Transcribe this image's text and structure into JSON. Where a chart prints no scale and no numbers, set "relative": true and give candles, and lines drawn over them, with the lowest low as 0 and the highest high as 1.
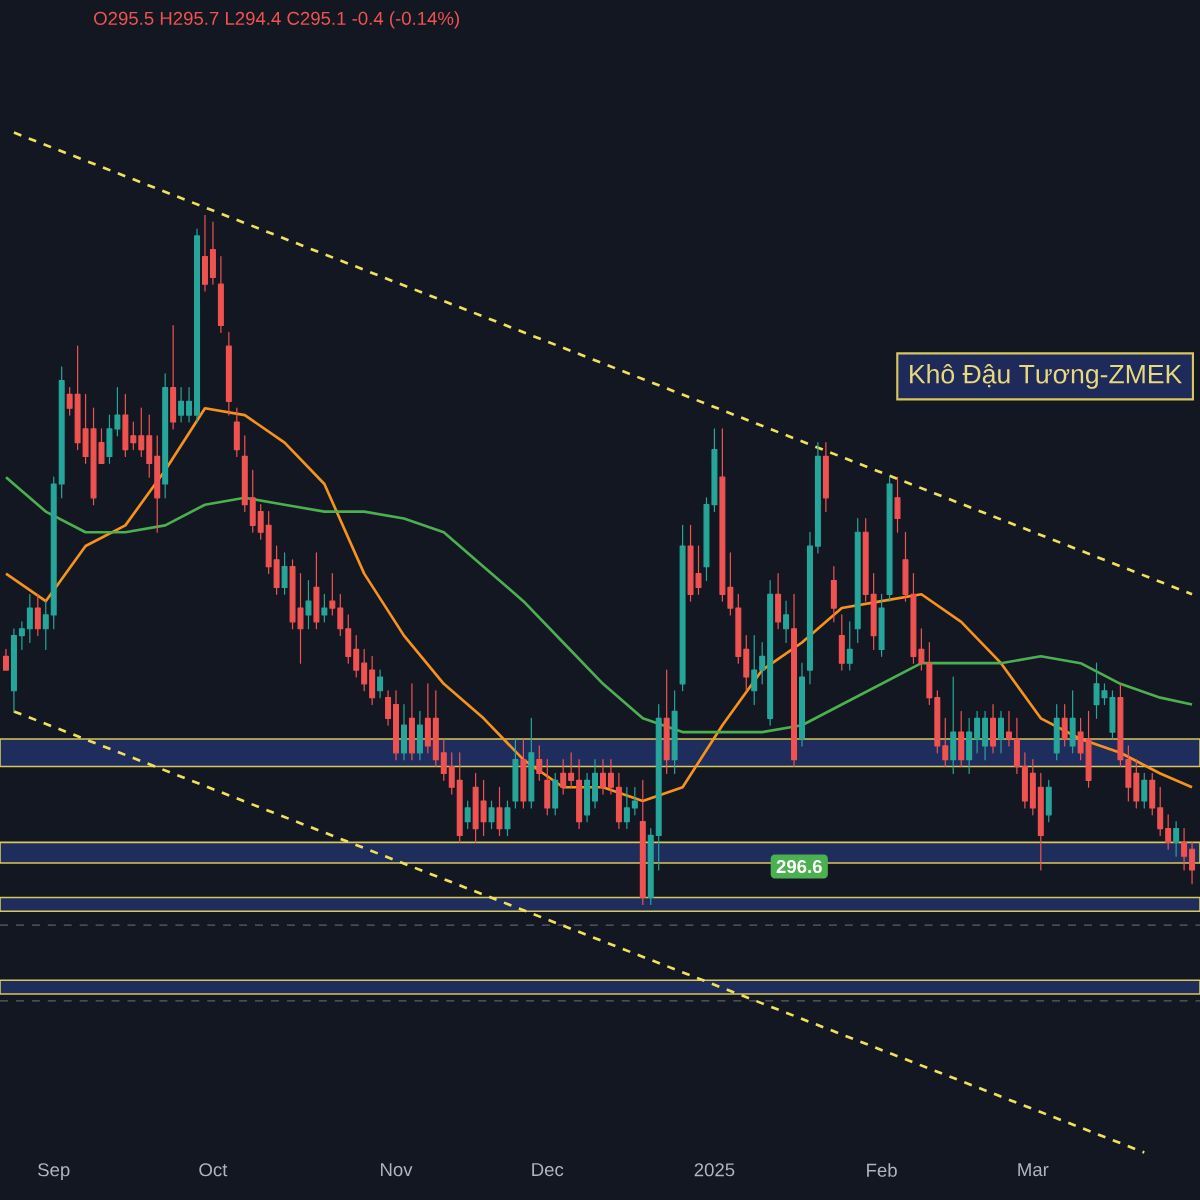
{
  "chart_data": {
    "type": "candlestick",
    "relative": true,
    "title": "Khô Đậu Tương-ZMEK",
    "subtitle": "O295.5 H295.7 L294.4 C295.1 -0.4 (-0.14%)",
    "annotations": [
      "296.6"
    ],
    "categories": [
      null,
      null,
      null,
      null,
      null,
      null,
      "Sep",
      null,
      null,
      null,
      null,
      null,
      null,
      null,
      null,
      null,
      null,
      null,
      null,
      null,
      null,
      null,
      null,
      null,
      null,
      null,
      "Oct",
      null,
      null,
      null,
      null,
      null,
      null,
      null,
      null,
      null,
      null,
      null,
      null,
      null,
      null,
      null,
      null,
      null,
      null,
      null,
      null,
      null,
      null,
      "Nov",
      null,
      null,
      null,
      null,
      null,
      null,
      null,
      null,
      null,
      null,
      null,
      null,
      null,
      null,
      null,
      null,
      null,
      null,
      "Dec",
      null,
      null,
      null,
      null,
      null,
      null,
      null,
      null,
      null,
      null,
      null,
      null,
      null,
      null,
      null,
      null,
      null,
      null,
      null,
      null,
      "2025",
      null,
      null,
      null,
      null,
      null,
      null,
      null,
      null,
      null,
      null,
      null,
      null,
      null,
      null,
      null,
      null,
      null,
      null,
      null,
      null,
      "Feb",
      null,
      null,
      null,
      null,
      null,
      null,
      null,
      null,
      null,
      null,
      null,
      null,
      null,
      null,
      null,
      null,
      null,
      null,
      "Mar",
      null,
      null,
      null,
      null,
      null,
      null,
      null,
      null,
      null,
      null,
      null,
      null,
      null,
      null,
      null,
      null,
      null,
      null,
      null,
      null
    ],
    "ohlc": [
      [
        0.36,
        0.37,
        0.34,
        0.34
      ],
      [
        0.31,
        0.4,
        0.28,
        0.39
      ],
      [
        0.39,
        0.41,
        0.37,
        0.4
      ],
      [
        0.4,
        0.45,
        0.38,
        0.43
      ],
      [
        0.43,
        0.45,
        0.39,
        0.4
      ],
      [
        0.4,
        0.44,
        0.37,
        0.42
      ],
      [
        0.42,
        0.62,
        0.4,
        0.61
      ],
      [
        0.61,
        0.78,
        0.59,
        0.76
      ],
      [
        0.74,
        0.75,
        0.71,
        0.72
      ],
      [
        0.74,
        0.81,
        0.66,
        0.67
      ],
      [
        0.69,
        0.74,
        0.64,
        0.65
      ],
      [
        0.69,
        0.72,
        0.58,
        0.59
      ],
      [
        0.67,
        0.69,
        0.64,
        0.64
      ],
      [
        0.65,
        0.71,
        0.64,
        0.69
      ],
      [
        0.69,
        0.75,
        0.68,
        0.71
      ],
      [
        0.71,
        0.74,
        0.65,
        0.66
      ],
      [
        0.68,
        0.7,
        0.66,
        0.67
      ],
      [
        0.68,
        0.72,
        0.65,
        0.66
      ],
      [
        0.68,
        0.71,
        0.62,
        0.64
      ],
      [
        0.65,
        0.68,
        0.54,
        0.59
      ],
      [
        0.61,
        0.77,
        0.59,
        0.75
      ],
      [
        0.75,
        0.84,
        0.69,
        0.7
      ],
      [
        0.71,
        0.75,
        0.7,
        0.73
      ],
      [
        0.71,
        0.75,
        0.7,
        0.73
      ],
      [
        0.71,
        0.98,
        0.7,
        0.97
      ],
      [
        0.94,
        1.0,
        0.89,
        0.9
      ],
      [
        0.95,
        0.99,
        0.9,
        0.91
      ],
      [
        0.9,
        0.94,
        0.83,
        0.84
      ],
      [
        0.81,
        0.83,
        0.71,
        0.73
      ],
      [
        0.7,
        0.72,
        0.65,
        0.66
      ],
      [
        0.65,
        0.68,
        0.57,
        0.58
      ],
      [
        0.59,
        0.63,
        0.54,
        0.55
      ],
      [
        0.57,
        0.58,
        0.53,
        0.54
      ],
      [
        0.55,
        0.57,
        0.48,
        0.49
      ],
      [
        0.5,
        0.52,
        0.45,
        0.46
      ],
      [
        0.46,
        0.51,
        0.45,
        0.49
      ],
      [
        0.49,
        0.5,
        0.4,
        0.41
      ],
      [
        0.43,
        0.48,
        0.35,
        0.4
      ],
      [
        0.42,
        0.47,
        0.4,
        0.44
      ],
      [
        0.46,
        0.51,
        0.4,
        0.41
      ],
      [
        0.42,
        0.45,
        0.41,
        0.43
      ],
      [
        0.44,
        0.48,
        0.42,
        0.43
      ],
      [
        0.43,
        0.45,
        0.39,
        0.4
      ],
      [
        0.4,
        0.42,
        0.35,
        0.36
      ],
      [
        0.37,
        0.39,
        0.33,
        0.34
      ],
      [
        0.35,
        0.37,
        0.31,
        0.32
      ],
      [
        0.34,
        0.36,
        0.29,
        0.3
      ],
      [
        0.31,
        0.34,
        0.3,
        0.33
      ],
      [
        0.3,
        0.31,
        0.26,
        0.27
      ],
      [
        0.29,
        0.31,
        0.21,
        0.22
      ],
      [
        0.22,
        0.29,
        0.21,
        0.26
      ],
      [
        0.27,
        0.32,
        0.21,
        0.22
      ],
      [
        0.22,
        0.28,
        0.21,
        0.26
      ],
      [
        0.27,
        0.32,
        0.22,
        0.23
      ],
      [
        0.27,
        0.31,
        0.2,
        0.21
      ],
      [
        0.22,
        0.24,
        0.18,
        0.19
      ],
      [
        0.2,
        0.22,
        0.16,
        0.17
      ],
      [
        0.18,
        0.22,
        0.09,
        0.1
      ],
      [
        0.12,
        0.15,
        0.11,
        0.14
      ],
      [
        0.17,
        0.19,
        0.09,
        0.11
      ],
      [
        0.15,
        0.18,
        0.1,
        0.12
      ],
      [
        0.12,
        0.15,
        0.11,
        0.14
      ],
      [
        0.14,
        0.17,
        0.1,
        0.11
      ],
      [
        0.11,
        0.15,
        0.1,
        0.14
      ],
      [
        0.15,
        0.24,
        0.14,
        0.21
      ],
      [
        0.21,
        0.24,
        0.14,
        0.15
      ],
      [
        0.15,
        0.27,
        0.14,
        0.22
      ],
      [
        0.21,
        0.23,
        0.18,
        0.19
      ],
      [
        0.18,
        0.21,
        0.13,
        0.14
      ],
      [
        0.14,
        0.19,
        0.13,
        0.18
      ],
      [
        0.19,
        0.21,
        0.16,
        0.17
      ],
      [
        0.19,
        0.22,
        0.17,
        0.18
      ],
      [
        0.18,
        0.21,
        0.11,
        0.12
      ],
      [
        0.13,
        0.19,
        0.12,
        0.18
      ],
      [
        0.15,
        0.21,
        0.14,
        0.19
      ],
      [
        0.19,
        0.21,
        0.16,
        0.17
      ],
      [
        0.19,
        0.21,
        0.16,
        0.17
      ],
      [
        0.17,
        0.19,
        0.11,
        0.12
      ],
      [
        0.12,
        0.17,
        0.11,
        0.14
      ],
      [
        0.14,
        0.17,
        0.13,
        0.15
      ],
      [
        0.12,
        0.18,
        0.0,
        0.01
      ],
      [
        0.01,
        0.11,
        0.0,
        0.1
      ],
      [
        0.1,
        0.29,
        0.05,
        0.27
      ],
      [
        0.27,
        0.34,
        0.19,
        0.21
      ],
      [
        0.21,
        0.31,
        0.19,
        0.28
      ],
      [
        0.32,
        0.55,
        0.31,
        0.52
      ],
      [
        0.52,
        0.55,
        0.44,
        0.45
      ],
      [
        0.48,
        0.52,
        0.45,
        0.46
      ],
      [
        0.49,
        0.59,
        0.47,
        0.58
      ],
      [
        0.58,
        0.69,
        0.57,
        0.66
      ],
      [
        0.62,
        0.69,
        0.44,
        0.45
      ],
      [
        0.46,
        0.51,
        0.42,
        0.43
      ],
      [
        0.43,
        0.45,
        0.35,
        0.36
      ],
      [
        0.37,
        0.39,
        0.31,
        0.33
      ],
      [
        0.31,
        0.39,
        0.29,
        0.34
      ],
      [
        0.34,
        0.38,
        0.32,
        0.36
      ],
      [
        0.27,
        0.47,
        0.26,
        0.45
      ],
      [
        0.45,
        0.48,
        0.4,
        0.41
      ],
      [
        0.4,
        0.44,
        0.38,
        0.42
      ],
      [
        0.4,
        0.45,
        0.2,
        0.21
      ],
      [
        0.24,
        0.35,
        0.23,
        0.33
      ],
      [
        0.34,
        0.54,
        0.32,
        0.52
      ],
      [
        0.52,
        0.67,
        0.51,
        0.65
      ],
      [
        0.65,
        0.67,
        0.57,
        0.59
      ],
      [
        0.47,
        0.49,
        0.41,
        0.43
      ],
      [
        0.39,
        0.42,
        0.34,
        0.35
      ],
      [
        0.35,
        0.41,
        0.34,
        0.37
      ],
      [
        0.4,
        0.56,
        0.38,
        0.54
      ],
      [
        0.54,
        0.56,
        0.44,
        0.45
      ],
      [
        0.45,
        0.48,
        0.37,
        0.39
      ],
      [
        0.37,
        0.45,
        0.36,
        0.43
      ],
      [
        0.45,
        0.62,
        0.44,
        0.61
      ],
      [
        0.59,
        0.62,
        0.54,
        0.56
      ],
      [
        0.5,
        0.54,
        0.44,
        0.45
      ],
      [
        0.45,
        0.48,
        0.35,
        0.36
      ],
      [
        0.37,
        0.4,
        0.34,
        0.35
      ],
      [
        0.35,
        0.38,
        0.29,
        0.3
      ],
      [
        0.3,
        0.31,
        0.22,
        0.23
      ],
      [
        0.23,
        0.27,
        0.2,
        0.21
      ],
      [
        0.21,
        0.33,
        0.19,
        0.25
      ],
      [
        0.25,
        0.28,
        0.2,
        0.21
      ],
      [
        0.21,
        0.27,
        0.19,
        0.25
      ],
      [
        0.24,
        0.28,
        0.22,
        0.27
      ],
      [
        0.23,
        0.28,
        0.21,
        0.27
      ],
      [
        0.27,
        0.29,
        0.22,
        0.23
      ],
      [
        0.24,
        0.28,
        0.22,
        0.27
      ],
      [
        0.25,
        0.28,
        0.23,
        0.24
      ],
      [
        0.24,
        0.27,
        0.19,
        0.2
      ],
      [
        0.2,
        0.22,
        0.14,
        0.15
      ],
      [
        0.19,
        0.21,
        0.13,
        0.14
      ],
      [
        0.17,
        0.19,
        0.05,
        0.1
      ],
      [
        0.13,
        0.18,
        0.12,
        0.17
      ],
      [
        0.22,
        0.29,
        0.21,
        0.27
      ],
      [
        0.27,
        0.29,
        0.23,
        0.24
      ],
      [
        0.23,
        0.31,
        0.22,
        0.27
      ],
      [
        0.25,
        0.27,
        0.21,
        0.22
      ],
      [
        0.24,
        0.28,
        0.17,
        0.18
      ],
      [
        0.29,
        0.35,
        0.27,
        0.32
      ],
      [
        0.3,
        0.32,
        0.29,
        0.31
      ],
      [
        0.25,
        0.31,
        0.24,
        0.3
      ],
      [
        0.3,
        0.32,
        0.2,
        0.21
      ],
      [
        0.21,
        0.23,
        0.15,
        0.17
      ],
      [
        0.19,
        0.21,
        0.14,
        0.15
      ],
      [
        0.15,
        0.19,
        0.14,
        0.18
      ],
      [
        0.18,
        0.19,
        0.13,
        0.14
      ],
      [
        0.14,
        0.17,
        0.1,
        0.11
      ],
      [
        0.11,
        0.13,
        0.08,
        0.09
      ],
      [
        0.09,
        0.12,
        0.07,
        0.11
      ],
      [
        0.09,
        0.11,
        0.05,
        0.07
      ],
      [
        0.08,
        0.09,
        0.03,
        0.05
      ]
    ],
    "series": [
      {
        "type": "line",
        "color": "#f7931a",
        "values": [
          0.48,
          null,
          null,
          null,
          null,
          0.44,
          null,
          null,
          null,
          null,
          0.52,
          null,
          null,
          null,
          null,
          0.55,
          null,
          null,
          null,
          null,
          0.63,
          null,
          null,
          null,
          null,
          0.72,
          null,
          null,
          null,
          null,
          0.71,
          null,
          null,
          null,
          null,
          0.67,
          null,
          null,
          null,
          null,
          0.61,
          null,
          null,
          null,
          null,
          0.48,
          null,
          null,
          null,
          null,
          0.39,
          null,
          null,
          null,
          null,
          0.32,
          null,
          null,
          null,
          null,
          0.27,
          null,
          null,
          null,
          null,
          0.21,
          null,
          null,
          null,
          null,
          0.17,
          null,
          null,
          null,
          null,
          0.17,
          null,
          null,
          null,
          null,
          0.15,
          null,
          null,
          null,
          null,
          0.17,
          null,
          null,
          null,
          null,
          0.26,
          null,
          null,
          null,
          null,
          0.34,
          null,
          null,
          null,
          null,
          0.38,
          null,
          null,
          null,
          null,
          0.43,
          null,
          null,
          null,
          null,
          0.44,
          null,
          null,
          null,
          null,
          0.45,
          null,
          null,
          null,
          null,
          0.41,
          null,
          null,
          null,
          null,
          0.35,
          null,
          null,
          null,
          null,
          0.27,
          null,
          null,
          null,
          null,
          0.24,
          null,
          null,
          null,
          null,
          0.22,
          null,
          null,
          null,
          null,
          0.19,
          null,
          null,
          null,
          0.17
        ]
      },
      {
        "type": "line",
        "color": "#4caf50",
        "values": [
          0.62,
          null,
          null,
          null,
          null,
          0.57,
          null,
          null,
          null,
          null,
          0.54,
          null,
          null,
          null,
          null,
          0.54,
          null,
          null,
          null,
          null,
          0.55,
          null,
          null,
          null,
          null,
          0.58,
          null,
          null,
          null,
          null,
          0.59,
          null,
          null,
          null,
          null,
          0.58,
          null,
          null,
          null,
          null,
          0.57,
          null,
          null,
          null,
          null,
          0.57,
          null,
          null,
          null,
          null,
          0.56,
          null,
          null,
          null,
          null,
          0.54,
          null,
          null,
          null,
          null,
          0.49,
          null,
          null,
          null,
          null,
          0.44,
          null,
          null,
          null,
          null,
          0.38,
          null,
          null,
          null,
          null,
          0.32,
          null,
          null,
          null,
          null,
          0.27,
          null,
          null,
          null,
          null,
          0.25,
          null,
          null,
          null,
          null,
          0.25,
          null,
          null,
          null,
          null,
          0.25,
          null,
          null,
          null,
          null,
          0.26,
          null,
          null,
          null,
          null,
          0.29,
          null,
          null,
          null,
          null,
          0.32,
          null,
          null,
          null,
          null,
          0.35,
          null,
          null,
          null,
          null,
          0.35,
          null,
          null,
          null,
          null,
          0.35,
          null,
          null,
          null,
          null,
          0.36,
          null,
          null,
          null,
          null,
          0.35,
          null,
          null,
          null,
          null,
          0.32,
          null,
          null,
          null,
          null,
          0.3,
          null,
          null,
          null,
          0.29
        ]
      },
      {
        "type": "line",
        "color": "#f0e05a",
        "line_style": "dashed",
        "values": [
          null,
          1.12,
          null,
          null,
          null,
          null,
          null,
          null,
          null,
          null,
          null,
          null,
          null,
          null,
          null,
          null,
          null,
          null,
          null,
          null,
          null,
          null,
          null,
          null,
          null,
          null,
          null,
          null,
          null,
          null,
          null,
          null,
          null,
          null,
          null,
          null,
          null,
          null,
          null,
          null,
          null,
          null,
          null,
          null,
          null,
          null,
          null,
          null,
          null,
          null,
          null,
          null,
          null,
          null,
          null,
          null,
          null,
          null,
          null,
          null,
          null,
          null,
          null,
          null,
          null,
          null,
          null,
          null,
          null,
          null,
          null,
          null,
          null,
          null,
          null,
          null,
          null,
          null,
          null,
          null,
          null,
          null,
          null,
          null,
          null,
          null,
          null,
          null,
          null,
          null,
          null,
          null,
          null,
          null,
          null,
          null,
          null,
          null,
          null,
          null,
          null,
          null,
          null,
          null,
          null,
          null,
          null,
          null,
          null,
          null,
          null,
          null,
          null,
          null,
          null,
          null,
          null,
          null,
          null,
          null,
          null,
          null,
          null,
          null,
          null,
          null,
          null,
          null,
          null,
          null,
          null,
          null,
          null,
          null,
          null,
          null,
          null,
          null,
          null,
          null,
          null,
          null,
          null,
          null,
          null,
          null,
          null,
          null,
          null,
          0.45
        ]
      },
      {
        "type": "line",
        "color": "#f0e05a",
        "line_style": "dashed",
        "values": [
          null,
          0.28,
          null,
          null,
          null,
          null,
          null,
          null,
          null,
          null,
          null,
          null,
          null,
          null,
          null,
          null,
          null,
          null,
          null,
          null,
          null,
          null,
          null,
          null,
          null,
          null,
          null,
          null,
          null,
          null,
          null,
          null,
          null,
          null,
          null,
          null,
          null,
          null,
          null,
          null,
          null,
          null,
          null,
          null,
          null,
          null,
          null,
          null,
          null,
          null,
          null,
          null,
          null,
          null,
          null,
          null,
          null,
          null,
          null,
          null,
          null,
          null,
          null,
          null,
          null,
          null,
          null,
          null,
          null,
          null,
          null,
          null,
          null,
          null,
          null,
          null,
          null,
          null,
          null,
          null,
          null,
          null,
          null,
          null,
          null,
          null,
          null,
          null,
          null,
          null,
          null,
          null,
          null,
          null,
          null,
          null,
          null,
          null,
          null,
          null,
          null,
          null,
          null,
          null,
          null,
          null,
          null,
          null,
          null,
          null,
          null,
          null,
          null,
          null,
          null,
          null,
          null,
          null,
          null,
          null,
          null,
          null,
          null,
          null,
          null,
          null,
          null,
          null,
          null,
          null,
          null,
          null,
          null,
          null,
          null,
          null,
          null,
          null,
          null,
          null,
          null,
          null,
          null,
          -0.36,
          null,
          null,
          null,
          null,
          null,
          null
        ]
      }
    ],
    "bands": [
      {
        "axis": "y",
        "from": 0.2,
        "to": 0.24,
        "color": "#1f2d5c"
      },
      {
        "axis": "y",
        "from": 0.06,
        "to": 0.09,
        "color": "#1f2d5c"
      },
      {
        "axis": "y",
        "from": -0.01,
        "to": 0.01,
        "color": "#1f2d5c"
      },
      {
        "axis": "y",
        "from": -0.13,
        "to": -0.11,
        "color": "#1f2d5c"
      }
    ],
    "ref_lines": [
      {
        "axis": "y",
        "value": -0.03,
        "line_style": "dashed",
        "color": "#5d606b"
      },
      {
        "axis": "y",
        "value": -0.14,
        "line_style": "dashed",
        "color": "#5d606b"
      }
    ]
  }
}
